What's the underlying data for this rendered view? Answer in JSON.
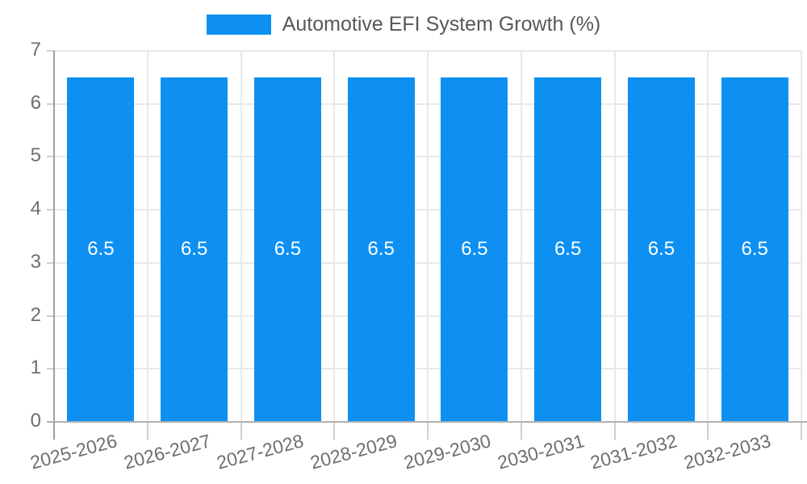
{
  "chart_data": {
    "type": "bar",
    "title": "Automotive EFI System Growth (%)",
    "categories": [
      "2025-2026",
      "2026-2027",
      "2027-2028",
      "2028-2029",
      "2029-2030",
      "2030-2031",
      "2031-2032",
      "2032-2033"
    ],
    "values": [
      6.5,
      6.5,
      6.5,
      6.5,
      6.5,
      6.5,
      6.5,
      6.5
    ],
    "data_labels": [
      "6.5",
      "6.5",
      "6.5",
      "6.5",
      "6.5",
      "6.5",
      "6.5",
      "6.5"
    ],
    "ylim": [
      0,
      7
    ],
    "yticks": [
      0,
      1,
      2,
      3,
      4,
      5,
      6,
      7
    ],
    "grid": true,
    "legend_position": "top",
    "xlabel": "",
    "ylabel": "",
    "colors": {
      "bar": "#0d90f2",
      "bar_label": "#ffffff",
      "grid": "#e8e8e8",
      "axis": "#9f9f9f",
      "axis_bottom": "#b0b0b0",
      "tick": "#cfcfcf",
      "tick_label": "#6e6e6e",
      "legend_text": "#55585c",
      "background": "#ffffff"
    }
  }
}
